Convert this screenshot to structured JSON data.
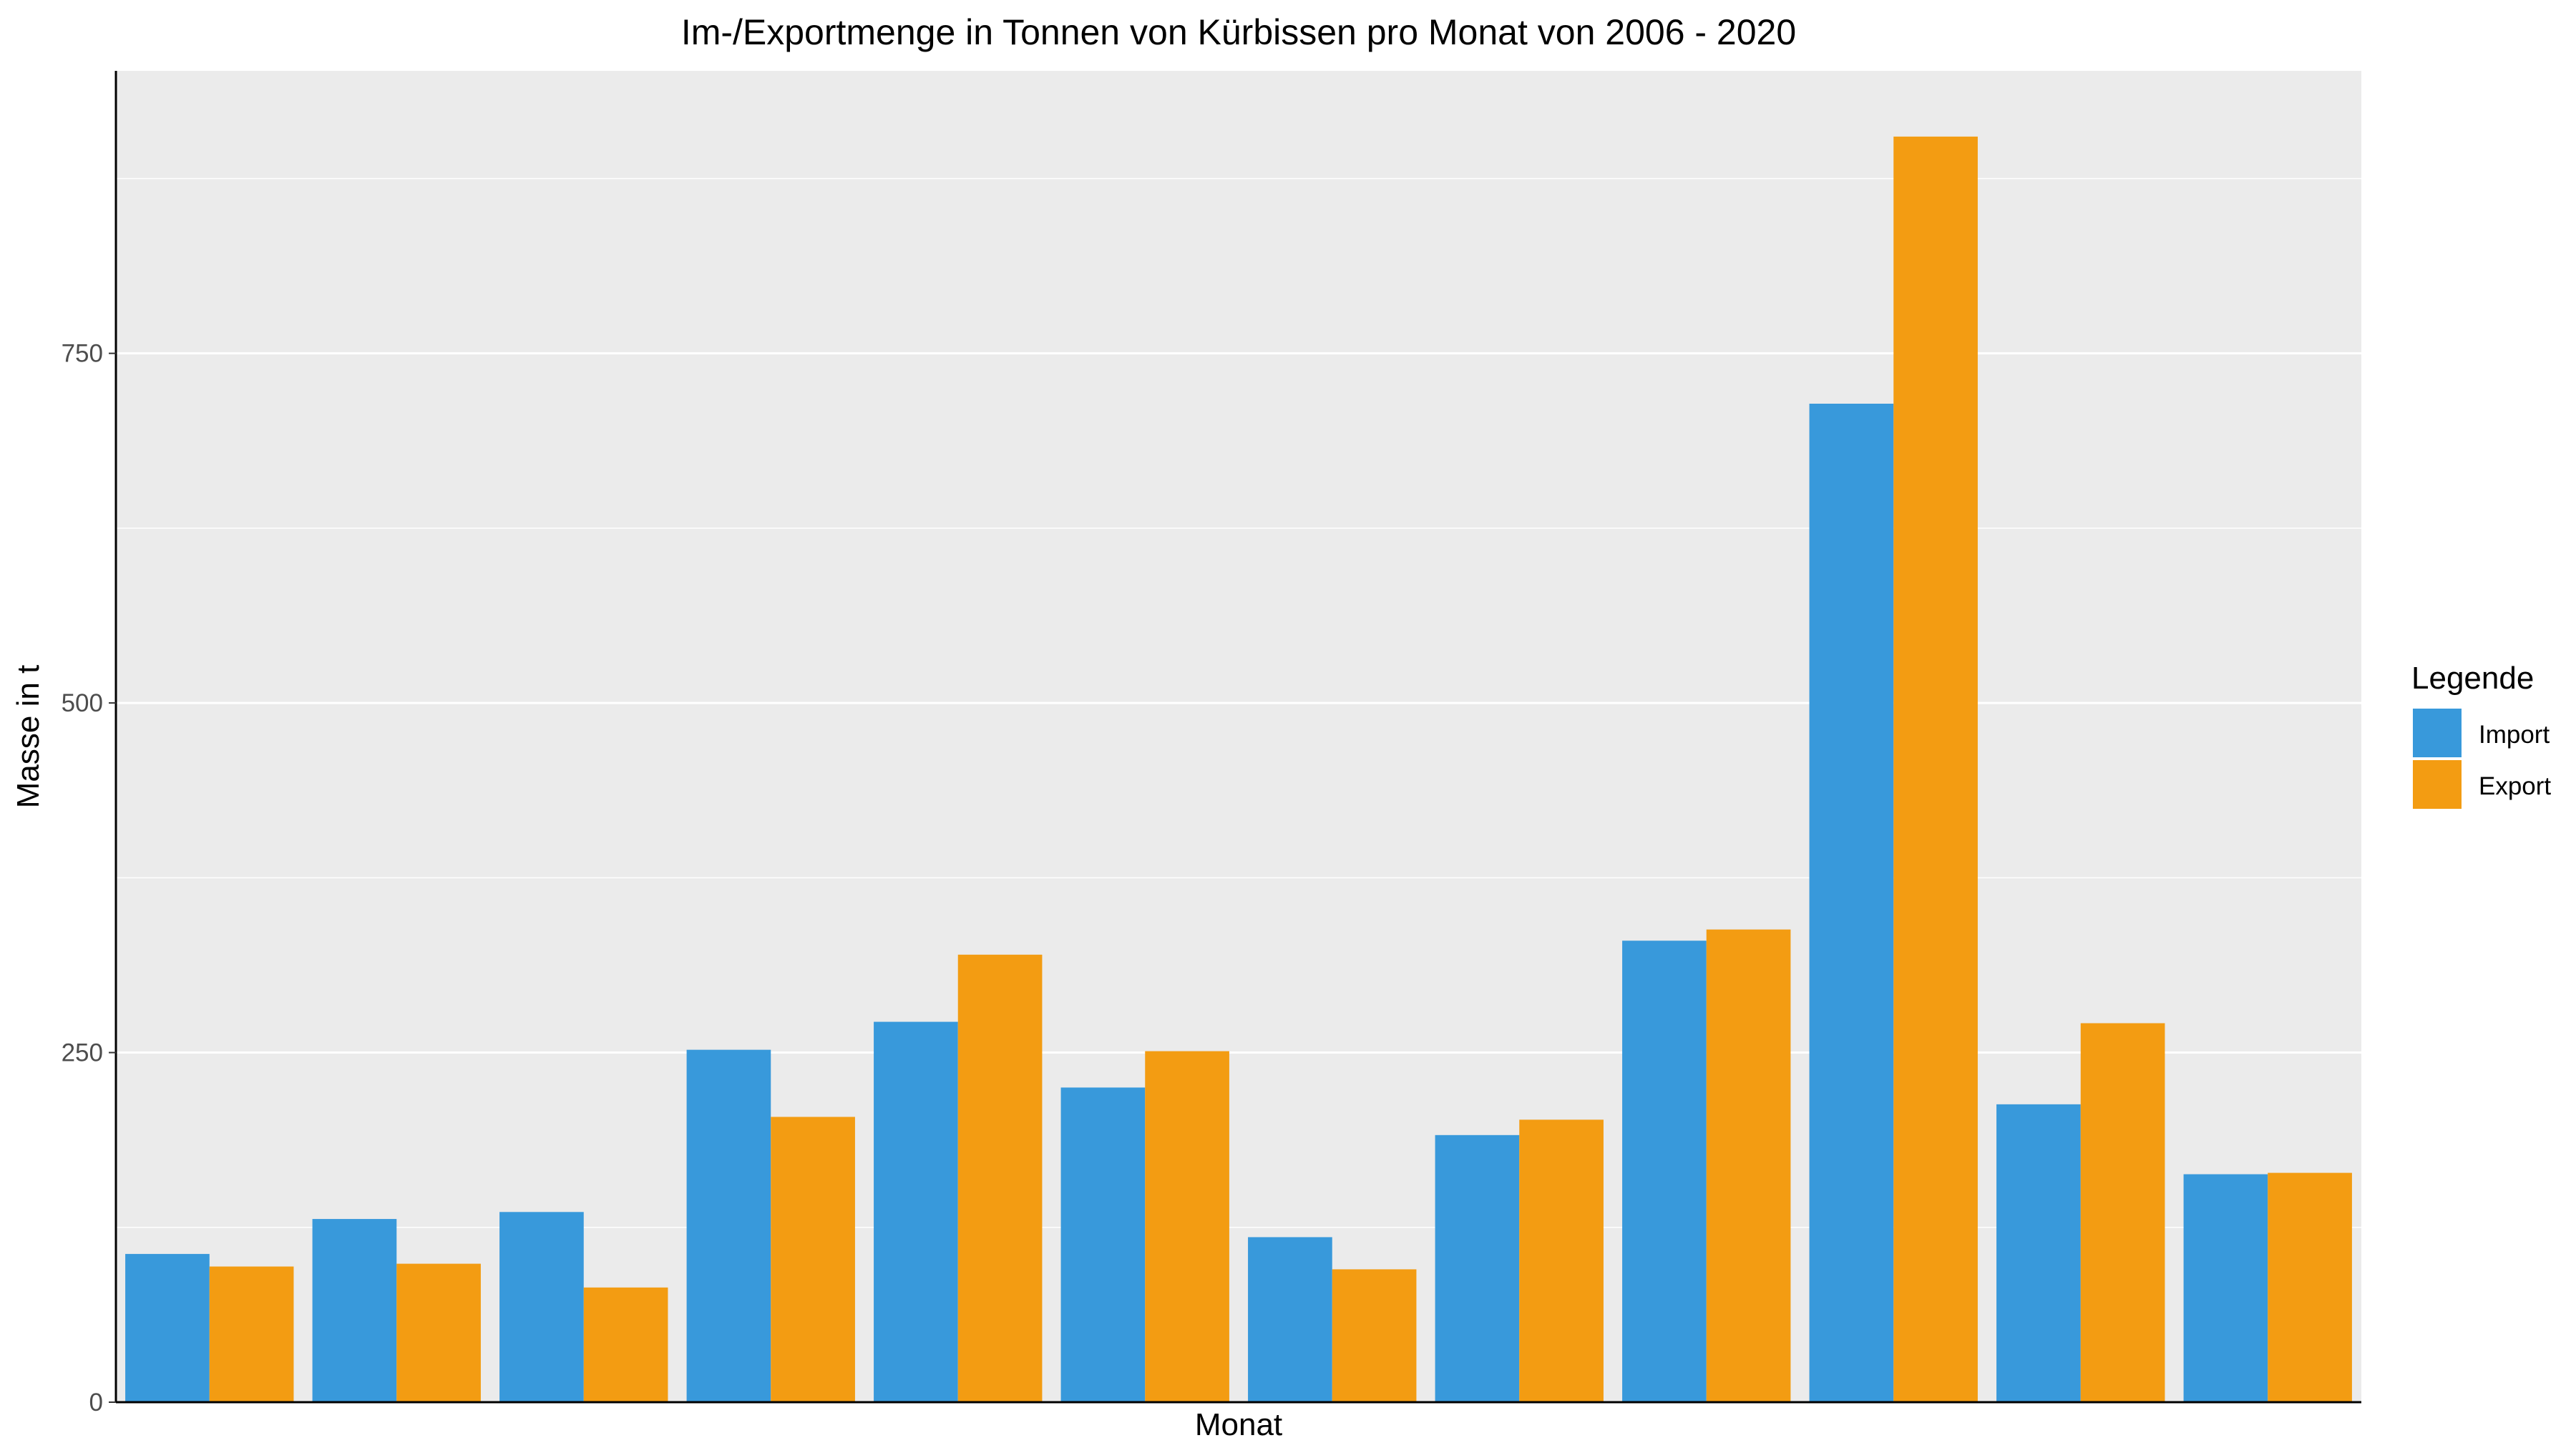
{
  "chart_data": {
    "type": "bar",
    "title": "Im-/Exportmenge in Tonnen von Kürbissen pro Monat von 2006 - 2020",
    "xlabel": "Monat",
    "ylabel": "Masse in t",
    "categories": [
      "",
      "",
      "",
      "",
      "",
      "",
      "",
      "",
      "",
      "",
      "",
      ""
    ],
    "series": [
      {
        "name": "Import",
        "color": "#3899DB",
        "values": [
          106,
          131,
          136,
          252,
          272,
          225,
          118,
          191,
          330,
          714,
          213,
          163
        ]
      },
      {
        "name": "Export",
        "color": "#F39C12",
        "values": [
          97,
          99,
          82,
          204,
          320,
          251,
          95,
          202,
          338,
          905,
          271,
          164
        ]
      }
    ],
    "ylim": [
      0,
      952
    ],
    "yticks": [
      0,
      250,
      500,
      750
    ],
    "legend": {
      "title": "Legende",
      "position": "right"
    },
    "grid": true,
    "panel_background": "#EBEBEB",
    "grid_color": "#FFFFFF"
  }
}
